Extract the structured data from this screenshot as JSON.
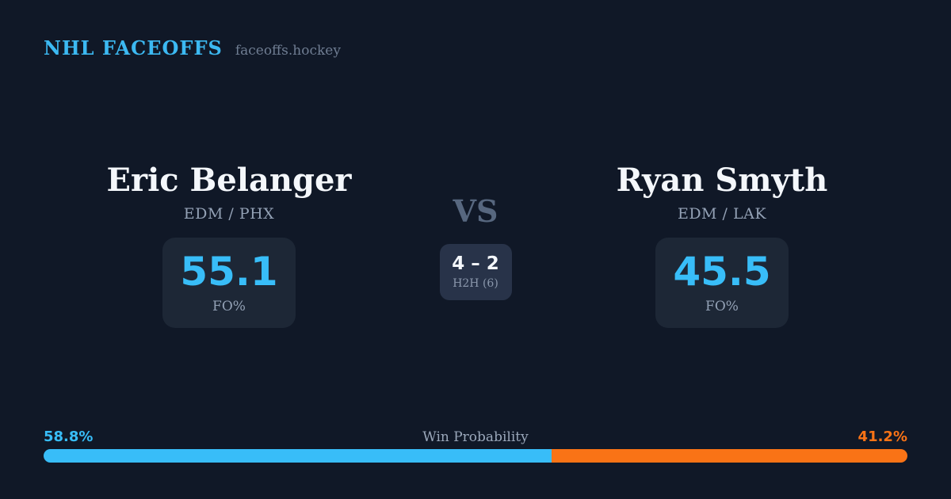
{
  "header": {
    "brand": "NHL FACEOFFS",
    "site": "faceoffs.hockey"
  },
  "matchup": {
    "vs_label": "VS",
    "h2h": {
      "score": "4 – 2",
      "label": "H2H (6)"
    },
    "player1": {
      "name": "Eric Belanger",
      "teams": "EDM / PHX",
      "stat_value": "55.1",
      "stat_label": "FO%"
    },
    "player2": {
      "name": "Ryan Smyth",
      "teams": "EDM / LAK",
      "stat_value": "45.5",
      "stat_label": "FO%"
    }
  },
  "win_probability": {
    "label": "Win Probability",
    "left_pct_label": "58.8%",
    "right_pct_label": "41.2%",
    "left_value": 58.8,
    "right_value": 41.2
  },
  "colors": {
    "background": "#101827",
    "card": "#1d2736",
    "h2h_card": "#283349",
    "accent_blue": "#38bdf8",
    "accent_orange": "#f97316",
    "text_primary": "#f4f7fb",
    "text_muted": "#93a1b5"
  }
}
